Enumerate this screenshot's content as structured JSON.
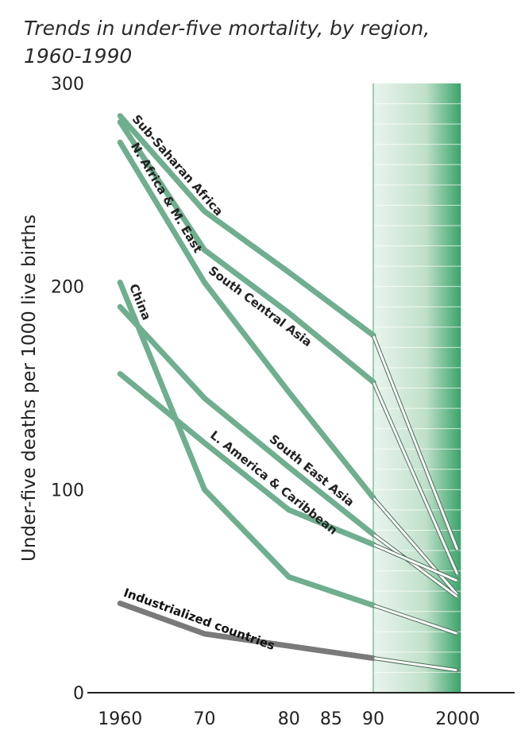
{
  "chart_data": {
    "type": "line",
    "title_lines": [
      "Trends in under-five mortality, by region,",
      "1960-1990"
    ],
    "ylabel": "Under-five deaths per 1000 live births",
    "xlabel": "",
    "xlim": [
      1958,
      2006
    ],
    "ylim": [
      0,
      300
    ],
    "x_ticks": [
      {
        "value": 1960,
        "label": "1960"
      },
      {
        "value": 1970,
        "label": "70"
      },
      {
        "value": 1980,
        "label": "80"
      },
      {
        "value": 1985,
        "label": "85"
      },
      {
        "value": 1990,
        "label": "90"
      },
      {
        "value": 2000,
        "label": "2000"
      }
    ],
    "y_ticks": [
      {
        "value": 0,
        "label": "0"
      },
      {
        "value": 100,
        "label": "100"
      },
      {
        "value": 200,
        "label": "200"
      },
      {
        "value": 300,
        "label": "300"
      }
    ],
    "projection_from": 1990,
    "colors": {
      "series": "#6fae8e",
      "industrialized": "#7a7a7a",
      "projection_band": "#3aa46a"
    },
    "series": [
      {
        "name": "Sub-Saharan Africa",
        "x": [
          1960,
          1970,
          1980,
          1990,
          2000
        ],
        "y": [
          284,
          237,
          207,
          176,
          70
        ]
      },
      {
        "name": "South Central Asia",
        "x": [
          1960,
          1970,
          1980,
          1990,
          2000
        ],
        "y": [
          281,
          218,
          187,
          153,
          58
        ]
      },
      {
        "name": "N. Africa & M. East",
        "x": [
          1960,
          1970,
          1980,
          1990,
          2000
        ],
        "y": [
          271,
          202,
          148,
          96,
          48
        ]
      },
      {
        "name": "South East Asia",
        "x": [
          1960,
          1970,
          1980,
          1990,
          2000
        ],
        "y": [
          190,
          145,
          111,
          78,
          47
        ]
      },
      {
        "name": "China",
        "x": [
          1960,
          1970,
          1980,
          1990,
          2000
        ],
        "y": [
          202,
          100,
          57,
          43,
          29
        ]
      },
      {
        "name": "L. America & Caribbean",
        "x": [
          1960,
          1970,
          1980,
          1990,
          2000
        ],
        "y": [
          157,
          123,
          90,
          73,
          55
        ]
      },
      {
        "name": "Industrialized countries",
        "x": [
          1960,
          1970,
          1980,
          1990,
          2000
        ],
        "y": [
          44,
          29,
          23,
          17,
          11
        ]
      }
    ]
  }
}
